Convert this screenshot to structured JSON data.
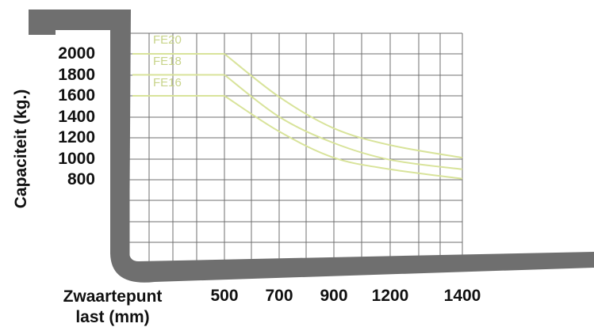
{
  "chart_data": {
    "type": "line",
    "title": "",
    "ylabel": "Capaciteit (kg.)",
    "xlabel": [
      "Zwaartepunt",
      "last (mm)"
    ],
    "yticks": [
      "2000",
      "1800",
      "1600",
      "1400",
      "1200",
      "1000",
      "800"
    ],
    "x": [
      "500",
      "700",
      "900",
      "1200",
      "1400"
    ],
    "series": [
      {
        "name": "FE20",
        "values": [
          2000,
          1590,
          1290,
          1130,
          1010
        ]
      },
      {
        "name": "FE18",
        "values": [
          1800,
          1400,
          1150,
          990,
          900
        ]
      },
      {
        "name": "FE16",
        "values": [
          1600,
          1260,
          1010,
          900,
          810
        ]
      }
    ],
    "ylim": [
      800,
      2000
    ],
    "grid": true
  },
  "colors": {
    "fork": "#6f6f6f",
    "grid": "#6f6f6f",
    "series": "#d8e39a",
    "series_label": "#c8d48a",
    "text": "#111111"
  }
}
